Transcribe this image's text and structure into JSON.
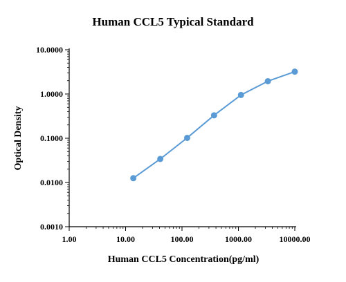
{
  "chart_data": {
    "type": "scatter",
    "title": "Human CCL5 Typical Standard",
    "xlabel": "Human CCL5 Concentration(pg/ml)",
    "ylabel": "Optical Density",
    "x_scale": "log",
    "y_scale": "log",
    "xlim": [
      1,
      10000
    ],
    "ylim": [
      0.001,
      10
    ],
    "x_ticks": [
      "1.00",
      "10.00",
      "100.00",
      "1000.00",
      "10000.00"
    ],
    "y_ticks": [
      "0.0010",
      "0.0100",
      "0.1000",
      "1.0000",
      "10.0000"
    ],
    "grid": false,
    "series": [
      {
        "color": "#5b9bd5",
        "x": [
          13.7,
          41.2,
          123.5,
          370.4,
          1111.1,
          3333.3,
          10000
        ],
        "y": [
          0.0125,
          0.034,
          0.102,
          0.33,
          0.95,
          1.95,
          3.2
        ]
      }
    ]
  }
}
